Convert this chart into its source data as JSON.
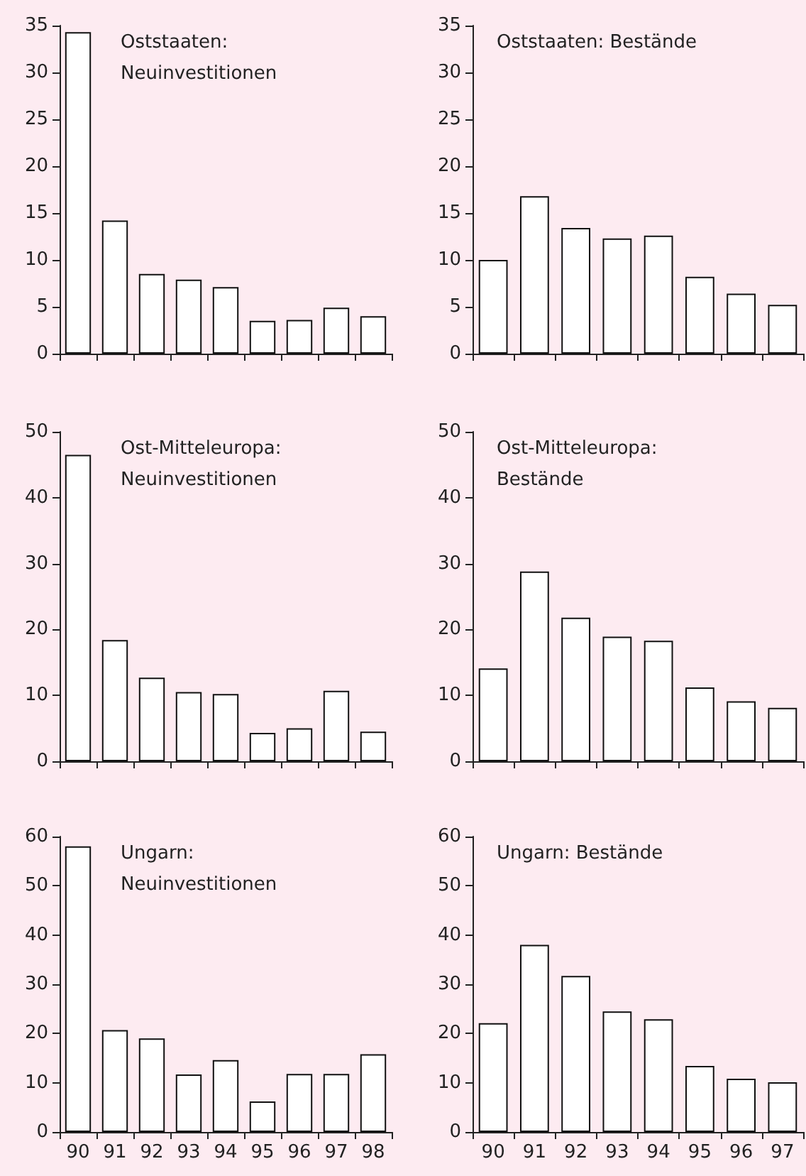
{
  "chart_data": [
    {
      "type": "bar",
      "title": "Oststaaten: Neuinvestitionen",
      "categories": [
        "90",
        "91",
        "92",
        "93",
        "94",
        "95",
        "96",
        "97",
        "98"
      ],
      "values": [
        34.3,
        14.2,
        8.5,
        7.9,
        7.1,
        3.5,
        3.6,
        4.9,
        4.0
      ],
      "color": "#ffffff",
      "ylim": [
        0,
        35
      ],
      "yticks": [
        0,
        5,
        10,
        15,
        20,
        25,
        30,
        35
      ],
      "tick_labels": "y"
    },
    {
      "type": "bar",
      "title": "Oststaaten: Bestände",
      "categories": [
        "90",
        "91",
        "92",
        "93",
        "94",
        "95",
        "96",
        "97"
      ],
      "values": [
        10.0,
        16.8,
        13.4,
        12.3,
        12.6,
        8.2,
        6.4,
        5.2
      ],
      "color": "#ffffff",
      "ylim": [
        0,
        35
      ],
      "yticks": [
        0,
        5,
        10,
        15,
        20,
        25,
        30,
        35
      ],
      "tick_labels": "y"
    },
    {
      "type": "bar",
      "title": "Ost-Mitteleuropa: Neuinvestitionen",
      "categories": [
        "90",
        "91",
        "92",
        "93",
        "94",
        "95",
        "96",
        "97",
        "98"
      ],
      "values": [
        46.5,
        18.4,
        12.7,
        10.5,
        10.2,
        4.3,
        5.0,
        10.7,
        4.5
      ],
      "color": "#ffffff",
      "ylim": [
        0,
        50
      ],
      "yticks": [
        0,
        10,
        20,
        30,
        40,
        50
      ],
      "tick_labels": "y"
    },
    {
      "type": "bar",
      "title": "Ost-Mitteleuropa: Bestände",
      "categories": [
        "90",
        "91",
        "92",
        "93",
        "94",
        "95",
        "96",
        "97"
      ],
      "values": [
        14.1,
        28.8,
        21.8,
        18.9,
        18.3,
        11.2,
        9.1,
        8.1
      ],
      "color": "#ffffff",
      "ylim": [
        0,
        50
      ],
      "yticks": [
        0,
        10,
        20,
        30,
        40,
        50
      ],
      "tick_labels": "y"
    },
    {
      "type": "bar",
      "title": "Ungarn: Neuinvestitionen",
      "categories": [
        "90",
        "91",
        "92",
        "93",
        "94",
        "95",
        "96",
        "97",
        "98"
      ],
      "values": [
        58,
        20.7,
        19.0,
        11.7,
        14.6,
        6.2,
        11.8,
        11.8,
        15.8
      ],
      "color": "#ffffff",
      "ylim": [
        0,
        60
      ],
      "yticks": [
        0,
        10,
        20,
        30,
        40,
        50,
        60
      ]
    },
    {
      "type": "bar",
      "title": "Ungarn: Bestände",
      "categories": [
        "90",
        "91",
        "92",
        "93",
        "94",
        "95",
        "96",
        "97"
      ],
      "values": [
        22.1,
        38.0,
        31.7,
        24.5,
        22.9,
        13.4,
        10.8,
        10.1
      ],
      "color": "#ffffff",
      "ylim": [
        0,
        60
      ],
      "yticks": [
        0,
        10,
        20,
        30,
        40,
        50,
        60
      ]
    }
  ]
}
